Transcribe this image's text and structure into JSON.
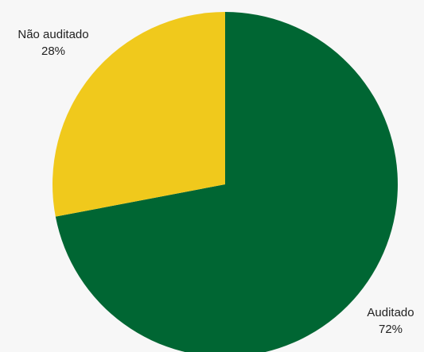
{
  "chart_data": {
    "type": "pie",
    "slices": [
      {
        "label": "Auditado",
        "value": 72,
        "display": "72%",
        "color": "#006633"
      },
      {
        "label": "Não auditado",
        "value": 28,
        "display": "28%",
        "color": "#f0c91c"
      }
    ],
    "background": "#f7f7f7"
  }
}
